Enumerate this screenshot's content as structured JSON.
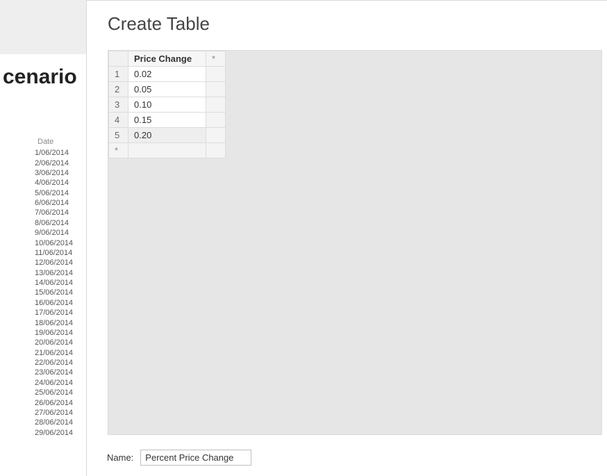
{
  "background": {
    "heading": "cenario",
    "date_header": "Date",
    "dates": [
      "1/06/2014",
      "2/06/2014",
      "3/06/2014",
      "4/06/2014",
      "5/06/2014",
      "6/06/2014",
      "7/06/2014",
      "8/06/2014",
      "9/06/2014",
      "10/06/2014",
      "11/06/2014",
      "12/06/2014",
      "13/06/2014",
      "14/06/2014",
      "15/06/2014",
      "16/06/2014",
      "17/06/2014",
      "18/06/2014",
      "19/06/2014",
      "20/06/2014",
      "21/06/2014",
      "22/06/2014",
      "23/06/2014",
      "24/06/2014",
      "25/06/2014",
      "26/06/2014",
      "27/06/2014",
      "28/06/2014",
      "29/06/2014"
    ]
  },
  "dialog": {
    "title": "Create Table",
    "column_name": "Price Change",
    "header_new_col": "*",
    "rows": [
      {
        "num": "1",
        "value": "0.02"
      },
      {
        "num": "2",
        "value": "0.05"
      },
      {
        "num": "3",
        "value": "0.10"
      },
      {
        "num": "4",
        "value": "0.15"
      },
      {
        "num": "5",
        "value": "0.20"
      }
    ],
    "new_row_marker": "*",
    "name_label": "Name:",
    "name_value": "Percent Price Change"
  }
}
